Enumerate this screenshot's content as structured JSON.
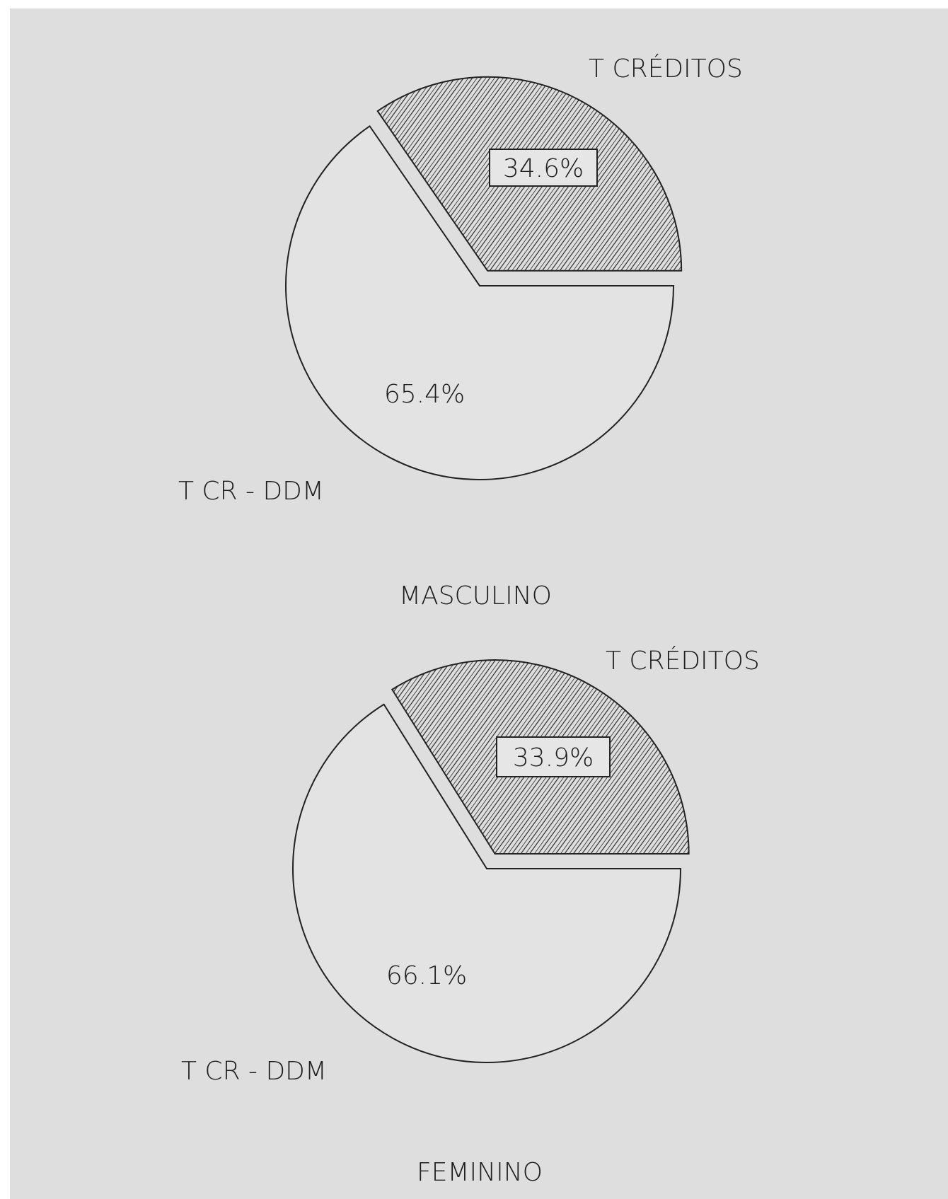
{
  "chart_data": [
    {
      "type": "pie",
      "title": "MASCULINO",
      "slices": [
        {
          "label": "T CRÉDITOS",
          "value": 34.6,
          "value_label": "34.6%",
          "pattern": "hatched",
          "exploded": true,
          "boxed_label": true
        },
        {
          "label": "T CR - DDM",
          "value": 65.4,
          "value_label": "65.4%",
          "pattern": "none",
          "exploded": false,
          "boxed_label": false
        }
      ]
    },
    {
      "type": "pie",
      "title": "FEMININO",
      "slices": [
        {
          "label": "T CRÉDITOS",
          "value": 33.9,
          "value_label": "33.9%",
          "pattern": "hatched",
          "exploded": true,
          "boxed_label": true
        },
        {
          "label": "T CR - DDM",
          "value": 66.1,
          "value_label": "66.1%",
          "pattern": "none",
          "exploded": false,
          "boxed_label": false
        }
      ]
    }
  ],
  "colors": {
    "background": "#dedede",
    "outline": "#222222",
    "hatch": "#2a2a2a",
    "slice_fill": "#e3e3e3"
  }
}
